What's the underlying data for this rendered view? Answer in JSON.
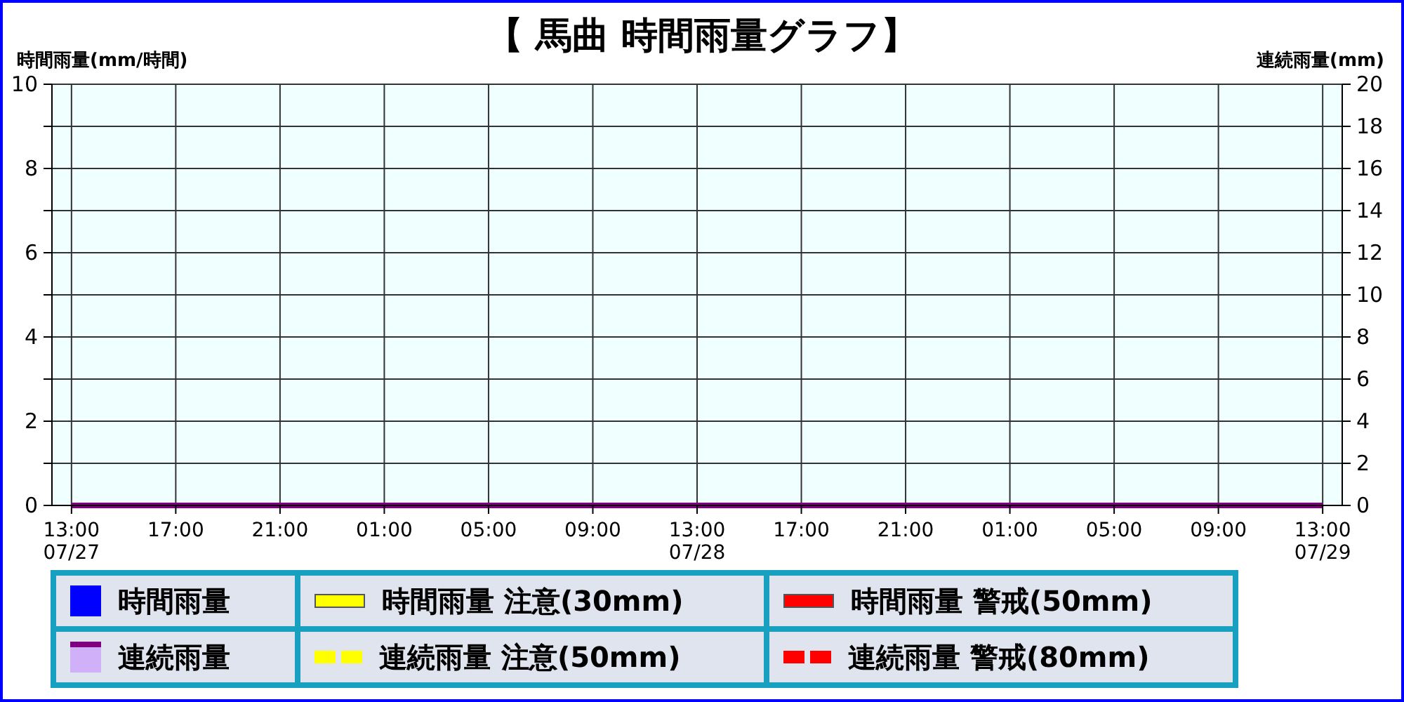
{
  "chart_data": {
    "type": "bar",
    "title": "【 馬曲  時間雨量グラフ】",
    "ylabel": "時間雨量(mm/時間)",
    "y2label": "連続雨量(mm)",
    "x": [
      "--07-27T13:00",
      "--07-27T14:00",
      "--07-27T15:00",
      "--07-27T16:00",
      "--07-27T17:00",
      "--07-27T18:00",
      "--07-27T19:00",
      "--07-27T20:00",
      "--07-27T21:00",
      "--07-27T22:00",
      "--07-27T23:00",
      "--07-28T00:00",
      "--07-28T01:00",
      "--07-28T02:00",
      "--07-28T03:00",
      "--07-28T04:00",
      "--07-28T05:00",
      "--07-28T06:00",
      "--07-28T07:00",
      "--07-28T08:00",
      "--07-28T09:00",
      "--07-28T10:00",
      "--07-28T11:00",
      "--07-28T12:00",
      "--07-28T13:00",
      "--07-28T14:00",
      "--07-28T15:00",
      "--07-28T16:00",
      "--07-28T17:00",
      "--07-28T18:00",
      "--07-28T19:00",
      "--07-28T20:00",
      "--07-28T21:00",
      "--07-28T22:00",
      "--07-28T23:00",
      "--07-29T00:00",
      "--07-29T01:00",
      "--07-29T02:00",
      "--07-29T03:00",
      "--07-29T04:00",
      "--07-29T05:00",
      "--07-29T06:00",
      "--07-29T07:00",
      "--07-29T08:00",
      "--07-29T09:00",
      "--07-29T10:00",
      "--07-29T11:00",
      "--07-29T12:00",
      "--07-29T13:00"
    ],
    "xlim": [
      "--07-27T12:15",
      "--07-29T13:45"
    ],
    "xticks": [
      {
        "value": "--07-27T13:00",
        "label": "13:00\n07/27"
      },
      {
        "value": "--07-27T17:00",
        "label": "17:00"
      },
      {
        "value": "--07-27T21:00",
        "label": "21:00"
      },
      {
        "value": "--07-28T01:00",
        "label": "01:00"
      },
      {
        "value": "--07-28T05:00",
        "label": "05:00"
      },
      {
        "value": "--07-28T09:00",
        "label": "09:00"
      },
      {
        "value": "--07-28T13:00",
        "label": "13:00\n07/28"
      },
      {
        "value": "--07-28T17:00",
        "label": "17:00"
      },
      {
        "value": "--07-28T21:00",
        "label": "21:00"
      },
      {
        "value": "--07-29T01:00",
        "label": "01:00"
      },
      {
        "value": "--07-29T05:00",
        "label": "05:00"
      },
      {
        "value": "--07-29T09:00",
        "label": "09:00"
      },
      {
        "value": "--07-29T13:00",
        "label": "13:00\n07/29"
      }
    ],
    "ylim": [
      0,
      10
    ],
    "yticks": [
      0,
      {
        "value": 1,
        "label": null
      },
      2,
      {
        "value": 3,
        "label": null
      },
      4,
      {
        "value": 5,
        "label": null
      },
      6,
      {
        "value": 7,
        "label": null
      },
      8,
      {
        "value": 9,
        "label": null
      },
      10
    ],
    "y2lim": [
      0,
      20
    ],
    "y2ticks": [
      0,
      2,
      4,
      6,
      8,
      10,
      12,
      14,
      16,
      18,
      20
    ],
    "grid": true,
    "legend": "bottom",
    "series": [
      {
        "name": "時間雨量",
        "color": "#0000ff",
        "values": [
          0,
          0,
          0,
          0,
          0,
          0,
          0,
          0,
          0,
          0,
          0,
          0,
          0,
          0,
          0,
          0,
          0,
          0,
          0,
          0,
          0,
          0,
          0,
          0,
          0,
          0,
          0,
          0,
          0,
          0,
          0,
          0,
          0,
          0,
          0,
          0,
          0,
          0,
          0,
          0,
          0,
          0,
          0,
          0,
          0,
          0,
          0,
          0,
          0
        ]
      },
      {
        "name": "時間雨量 注意(30mm)",
        "type": "line",
        "line_style": "solid",
        "color": "#ffff00",
        "values": [
          null,
          null,
          null,
          null,
          null,
          null,
          null,
          null,
          null,
          null,
          null,
          null,
          null,
          null,
          null,
          null,
          null,
          null,
          null,
          null,
          null,
          null,
          null,
          null,
          null,
          null,
          null,
          null,
          null,
          null,
          null,
          null,
          null,
          null,
          null,
          null,
          null,
          null,
          null,
          null,
          null,
          null,
          null,
          null,
          null,
          null,
          null,
          null,
          null
        ]
      },
      {
        "name": "時間雨量 警戒(50mm)",
        "type": "line",
        "line_style": "solid",
        "color": "#ff0000",
        "values": [
          null,
          null,
          null,
          null,
          null,
          null,
          null,
          null,
          null,
          null,
          null,
          null,
          null,
          null,
          null,
          null,
          null,
          null,
          null,
          null,
          null,
          null,
          null,
          null,
          null,
          null,
          null,
          null,
          null,
          null,
          null,
          null,
          null,
          null,
          null,
          null,
          null,
          null,
          null,
          null,
          null,
          null,
          null,
          null,
          null,
          null,
          null,
          null,
          null
        ]
      },
      {
        "name": "連続雨量",
        "type": "line",
        "axis": "y2",
        "color": "#800080",
        "values": [
          0,
          0,
          0,
          0,
          0,
          0,
          0,
          0,
          0,
          0,
          0,
          0,
          0,
          0,
          0,
          0,
          0,
          0,
          0,
          0,
          0,
          0,
          0,
          0,
          0,
          0,
          0,
          0,
          0,
          0,
          0,
          0,
          0,
          0,
          0,
          0,
          0,
          0,
          0,
          0,
          0,
          0,
          0,
          0,
          0,
          0,
          0,
          0,
          0
        ]
      },
      {
        "name": "連続雨量 注意(50mm)",
        "type": "line",
        "line_style": "dashed",
        "color": "#ffff00",
        "values": [
          null,
          null,
          null,
          null,
          null,
          null,
          null,
          null,
          null,
          null,
          null,
          null,
          null,
          null,
          null,
          null,
          null,
          null,
          null,
          null,
          null,
          null,
          null,
          null,
          null,
          null,
          null,
          null,
          null,
          null,
          null,
          null,
          null,
          null,
          null,
          null,
          null,
          null,
          null,
          null,
          null,
          null,
          null,
          null,
          null,
          null,
          null,
          null,
          null
        ]
      },
      {
        "name": "連続雨量 警戒(80mm)",
        "type": "line",
        "line_style": "dashed",
        "color": "#ff0000",
        "values": [
          null,
          null,
          null,
          null,
          null,
          null,
          null,
          null,
          null,
          null,
          null,
          null,
          null,
          null,
          null,
          null,
          null,
          null,
          null,
          null,
          null,
          null,
          null,
          null,
          null,
          null,
          null,
          null,
          null,
          null,
          null,
          null,
          null,
          null,
          null,
          null,
          null,
          null,
          null,
          null,
          null,
          null,
          null,
          null,
          null,
          null,
          null,
          null,
          null
        ]
      }
    ]
  }
}
